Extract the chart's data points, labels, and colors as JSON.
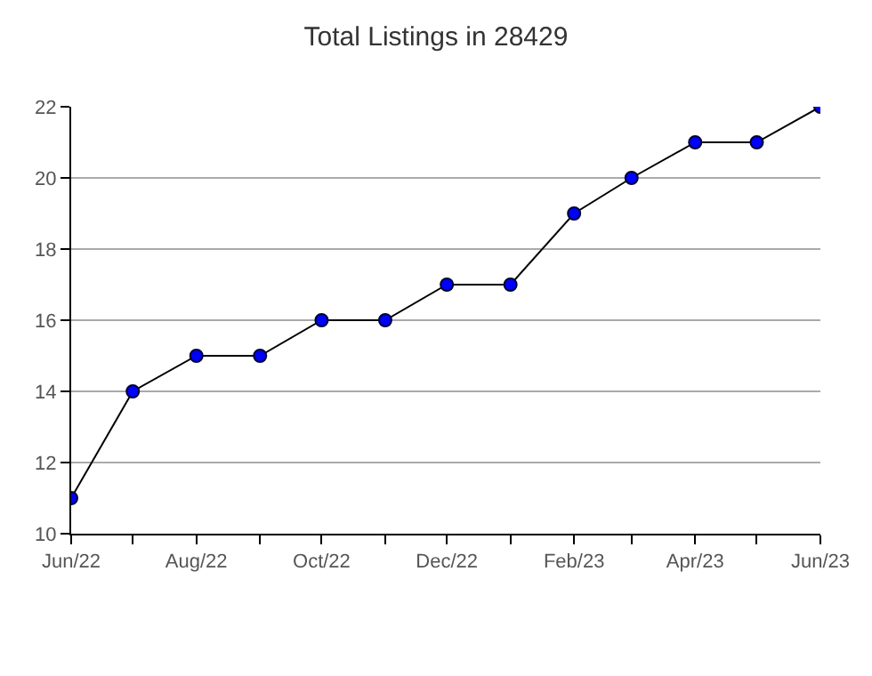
{
  "chart_data": {
    "type": "line",
    "title": "Total Listings in 28429",
    "x": [
      "2022-06",
      "2022-07",
      "2022-08",
      "2022-09",
      "2022-10",
      "2022-11",
      "2022-12",
      "2023-01",
      "2023-02",
      "2023-03",
      "2023-04",
      "2023-05",
      "2023-06"
    ],
    "series": [
      {
        "color": "#0000ff",
        "values": [
          11,
          14,
          15,
          15,
          16,
          16,
          17,
          17,
          19,
          20,
          21,
          21,
          22
        ]
      }
    ],
    "xlim": [
      "2022-06",
      "2023-06"
    ],
    "xticks": [
      {
        "value": "2022-06",
        "label": "Jun/22"
      },
      {
        "value": "2022-07",
        "label": null
      },
      {
        "value": "2022-08",
        "label": "Aug/22"
      },
      {
        "value": "2022-09",
        "label": null
      },
      {
        "value": "2022-10",
        "label": "Oct/22"
      },
      {
        "value": "2022-11",
        "label": null
      },
      {
        "value": "2022-12",
        "label": "Dec/22"
      },
      {
        "value": "2023-01",
        "label": null
      },
      {
        "value": "2023-02",
        "label": "Feb/23"
      },
      {
        "value": "2023-03",
        "label": null
      },
      {
        "value": "2023-04",
        "label": "Apr/23"
      },
      {
        "value": "2023-05",
        "label": null
      },
      {
        "value": "2023-06",
        "label": "Jun/23"
      }
    ],
    "ylim": [
      10,
      22
    ],
    "yticks": [
      10,
      12,
      14,
      16,
      18,
      20,
      22
    ],
    "grid": "y",
    "legend": false,
    "marker": "circle",
    "line_style": "solid"
  }
}
